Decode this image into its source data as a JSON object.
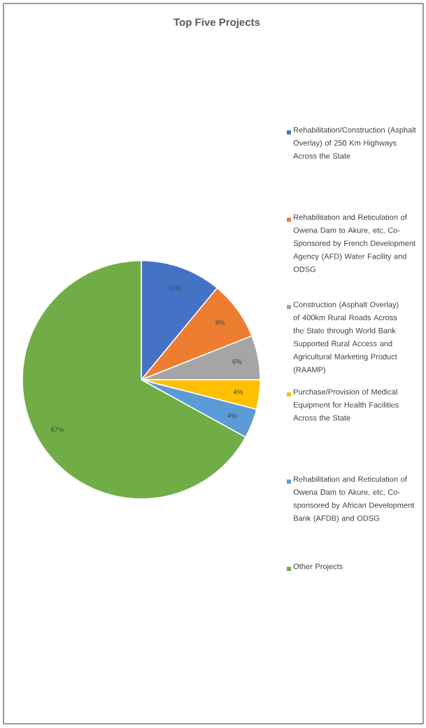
{
  "chart_data": {
    "type": "pie",
    "title": "Top Five Projects",
    "categories": [
      "Rehabilitation/Construction (Asphalt Overlay) of 250 Km Highways Across the State",
      "Rehabilitation and Reticulation of Owena Dam to Akure, etc, Co-Sponsored by French Development Agency (AFD) Water Facility and ODSG",
      "Construction (Asphalt Overlay) of 400km Rural Roads Across the State through World Bank Supported Rural Access and Agricultural Marketing Product (RAAMP)",
      "Purchase/Provision of Medical Equipment for Health Facilities Across the State",
      "Rehabilitation and Reticulation of Owena Dam to Akure, etc, Co-sponsored by African Development Bank (AFDB) and ODSG",
      "Other Projects"
    ],
    "values": [
      11,
      8,
      6,
      4,
      4,
      67
    ],
    "value_labels": [
      "11%",
      "8%",
      "6%",
      "4%",
      "4%",
      "67%"
    ],
    "colors": [
      "#4472c4",
      "#ed7d31",
      "#a5a5a5",
      "#ffc000",
      "#5b9bd5",
      "#70ad47"
    ],
    "legend": "right"
  }
}
